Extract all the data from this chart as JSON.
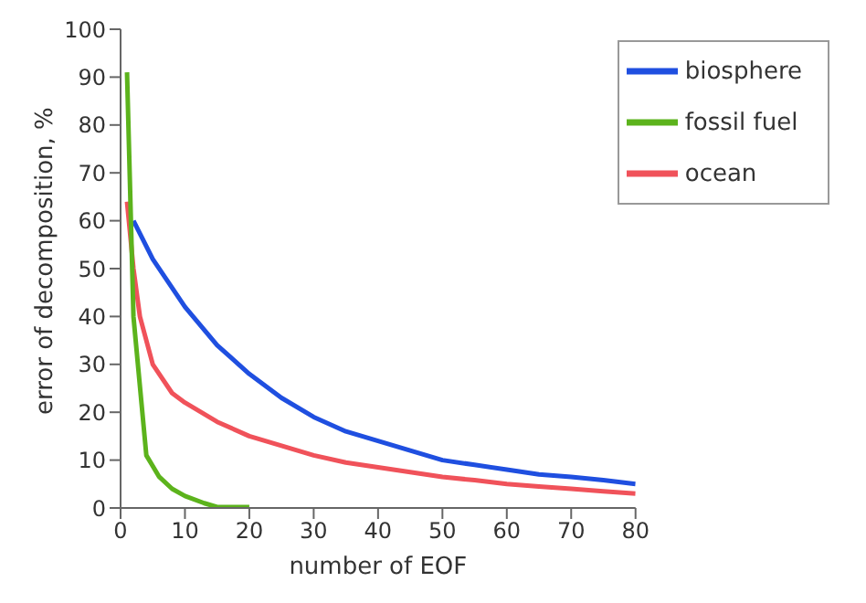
{
  "chart_data": {
    "type": "line",
    "xlabel": "number of EOF",
    "ylabel": "error of decomposition, %",
    "xlim": [
      0,
      80
    ],
    "ylim": [
      0,
      100
    ],
    "xticks": [
      0,
      10,
      20,
      30,
      40,
      50,
      60,
      70,
      80
    ],
    "yticks": [
      0,
      10,
      20,
      30,
      40,
      50,
      60,
      70,
      80,
      90,
      100
    ],
    "legend": "top right",
    "grid": false,
    "marker": "none",
    "line_style": "solid",
    "series": [
      {
        "name": "biosphere",
        "color": "#1f4fe0",
        "x": [
          2,
          5,
          10,
          15,
          20,
          25,
          30,
          35,
          40,
          45,
          50,
          55,
          60,
          65,
          70,
          75,
          80
        ],
        "values": [
          60,
          52,
          42,
          34,
          28,
          23,
          19,
          16,
          14,
          12,
          10,
          9,
          8,
          7,
          6.5,
          5.8,
          5
        ]
      },
      {
        "name": "ocean",
        "color": "#f0525a",
        "x": [
          1,
          2,
          3,
          5,
          8,
          10,
          15,
          20,
          25,
          30,
          35,
          40,
          45,
          50,
          55,
          60,
          65,
          70,
          75,
          80
        ],
        "values": [
          64,
          50,
          40,
          30,
          24,
          22,
          18,
          15,
          13,
          11,
          9.5,
          8.5,
          7.5,
          6.5,
          5.8,
          5,
          4.5,
          4,
          3.5,
          3
        ]
      },
      {
        "name": "fossil fuel",
        "color": "#5cb31c",
        "x": [
          1,
          2,
          4,
          6,
          8,
          10,
          13,
          15,
          20
        ],
        "values": [
          91,
          40,
          11,
          6.5,
          4,
          2.5,
          1,
          0.2,
          0.2
        ]
      }
    ]
  }
}
